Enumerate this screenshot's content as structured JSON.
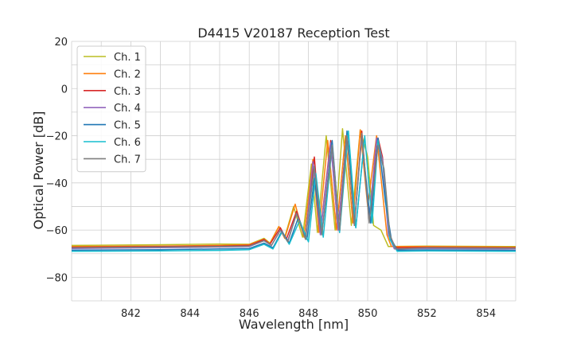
{
  "chart_data": {
    "type": "line",
    "title": "D4415 V20187 Reception Test",
    "xlabel": "Wavelength [nm]",
    "ylabel": "Optical Power [dB]",
    "xlim": [
      840,
      855
    ],
    "ylim": [
      -90,
      20
    ],
    "xticks": [
      842,
      844,
      846,
      848,
      850,
      852,
      854
    ],
    "yticks": [
      20,
      0,
      -20,
      -40,
      -60,
      -80
    ],
    "xtick_labels": [
      "842",
      "844",
      "846",
      "848",
      "850",
      "852",
      "854"
    ],
    "ytick_labels": [
      "20",
      "0",
      "−20",
      "−40",
      "−60",
      "−80"
    ],
    "grid": true,
    "legend_position": "top-left",
    "series": [
      {
        "name": "Ch. 1",
        "color": "#bcbd22",
        "points": [
          [
            840,
            -66.5
          ],
          [
            843,
            -66.2
          ],
          [
            845,
            -65.9
          ],
          [
            846,
            -66
          ],
          [
            846.5,
            -63.5
          ],
          [
            846.7,
            -65.5
          ],
          [
            847,
            -58.5
          ],
          [
            847.2,
            -63
          ],
          [
            847.5,
            -50
          ],
          [
            847.8,
            -63
          ],
          [
            848.1,
            -32
          ],
          [
            848.3,
            -61
          ],
          [
            848.6,
            -20
          ],
          [
            848.9,
            -60
          ],
          [
            849.15,
            -17
          ],
          [
            849.45,
            -58
          ],
          [
            849.75,
            -17.5
          ],
          [
            850,
            -29
          ],
          [
            850.2,
            -58
          ],
          [
            850.45,
            -60
          ],
          [
            850.7,
            -67
          ],
          [
            852,
            -66.8
          ],
          [
            855,
            -67
          ]
        ]
      },
      {
        "name": "Ch. 2",
        "color": "#ff7f0e",
        "points": [
          [
            840,
            -67
          ],
          [
            843,
            -66.8
          ],
          [
            845,
            -66.5
          ],
          [
            846,
            -66.2
          ],
          [
            846.5,
            -63.8
          ],
          [
            846.7,
            -65.8
          ],
          [
            847,
            -58.5
          ],
          [
            847.2,
            -63.5
          ],
          [
            847.55,
            -49
          ],
          [
            847.85,
            -63
          ],
          [
            848.15,
            -30
          ],
          [
            848.35,
            -61
          ],
          [
            848.65,
            -22
          ],
          [
            848.95,
            -60
          ],
          [
            849.25,
            -20
          ],
          [
            849.5,
            -57
          ],
          [
            849.75,
            -17.5
          ],
          [
            850.0,
            -50
          ],
          [
            850.3,
            -20
          ],
          [
            850.65,
            -62
          ],
          [
            850.8,
            -67
          ],
          [
            852,
            -67
          ],
          [
            855,
            -67.3
          ]
        ]
      },
      {
        "name": "Ch. 3",
        "color": "#d62728",
        "points": [
          [
            840,
            -67.3
          ],
          [
            843,
            -67
          ],
          [
            845,
            -66.8
          ],
          [
            846,
            -66.5
          ],
          [
            846.5,
            -64
          ],
          [
            846.7,
            -66
          ],
          [
            847.05,
            -59
          ],
          [
            847.25,
            -64
          ],
          [
            847.6,
            -52
          ],
          [
            847.9,
            -63
          ],
          [
            848.2,
            -29
          ],
          [
            848.4,
            -61
          ],
          [
            848.75,
            -22
          ],
          [
            849.0,
            -60
          ],
          [
            849.3,
            -19
          ],
          [
            849.55,
            -58
          ],
          [
            849.8,
            -18
          ],
          [
            850.05,
            -56
          ],
          [
            850.35,
            -21
          ],
          [
            850.5,
            -29
          ],
          [
            850.7,
            -60
          ],
          [
            850.9,
            -67.5
          ],
          [
            852,
            -67.3
          ],
          [
            855,
            -67.5
          ]
        ]
      },
      {
        "name": "Ch. 4",
        "color": "#9467bd",
        "points": [
          [
            840,
            -67.8
          ],
          [
            843,
            -67.5
          ],
          [
            845,
            -67.2
          ],
          [
            846,
            -67
          ],
          [
            846.5,
            -64.5
          ],
          [
            846.75,
            -66.5
          ],
          [
            847.05,
            -60
          ],
          [
            847.3,
            -64.5
          ],
          [
            847.6,
            -53
          ],
          [
            847.9,
            -63.5
          ],
          [
            848.15,
            -31
          ],
          [
            848.4,
            -62
          ],
          [
            848.75,
            -23
          ],
          [
            849.0,
            -60
          ],
          [
            849.3,
            -19
          ],
          [
            849.55,
            -58
          ],
          [
            849.8,
            -20
          ],
          [
            850.05,
            -56
          ],
          [
            850.3,
            -21
          ],
          [
            850.5,
            -30
          ],
          [
            850.7,
            -62
          ],
          [
            850.9,
            -68
          ],
          [
            852,
            -67.8
          ],
          [
            855,
            -68
          ]
        ]
      },
      {
        "name": "Ch. 5",
        "color": "#1f77b4",
        "points": [
          [
            840,
            -68.5
          ],
          [
            843,
            -68.3
          ],
          [
            845,
            -68
          ],
          [
            846,
            -67.8
          ],
          [
            846.5,
            -65.5
          ],
          [
            846.8,
            -67.5
          ],
          [
            847.1,
            -60.5
          ],
          [
            847.35,
            -65.5
          ],
          [
            847.65,
            -55
          ],
          [
            847.95,
            -64
          ],
          [
            848.2,
            -38
          ],
          [
            848.45,
            -62
          ],
          [
            848.8,
            -22
          ],
          [
            849.05,
            -61
          ],
          [
            849.3,
            -18
          ],
          [
            849.6,
            -59
          ],
          [
            849.85,
            -27
          ],
          [
            850.1,
            -57
          ],
          [
            850.35,
            -21
          ],
          [
            850.6,
            -48
          ],
          [
            850.8,
            -64
          ],
          [
            851.0,
            -68.5
          ],
          [
            852,
            -68.4
          ],
          [
            855,
            -68.6
          ]
        ]
      },
      {
        "name": "Ch. 6",
        "color": "#17becf",
        "points": [
          [
            840,
            -69
          ],
          [
            843,
            -68.8
          ],
          [
            845,
            -68.6
          ],
          [
            846,
            -68.3
          ],
          [
            846.5,
            -66
          ],
          [
            846.8,
            -68
          ],
          [
            847.1,
            -61
          ],
          [
            847.35,
            -66
          ],
          [
            847.7,
            -56
          ],
          [
            848.0,
            -65
          ],
          [
            848.25,
            -36
          ],
          [
            848.5,
            -63
          ],
          [
            848.8,
            -24
          ],
          [
            849.05,
            -61
          ],
          [
            849.35,
            -18
          ],
          [
            849.6,
            -59
          ],
          [
            849.9,
            -20
          ],
          [
            850.15,
            -57
          ],
          [
            850.35,
            -22
          ],
          [
            850.55,
            -35
          ],
          [
            850.75,
            -64
          ],
          [
            851.0,
            -69
          ],
          [
            852,
            -68.8
          ],
          [
            855,
            -69
          ]
        ]
      },
      {
        "name": "Ch. 7",
        "color": "#7f7f7f",
        "points": [
          [
            840,
            -67.5
          ],
          [
            843,
            -67.2
          ],
          [
            845,
            -67
          ],
          [
            846,
            -66.8
          ],
          [
            846.5,
            -64.5
          ],
          [
            846.75,
            -66.5
          ],
          [
            847.05,
            -60
          ],
          [
            847.3,
            -65
          ],
          [
            847.6,
            -53
          ],
          [
            847.9,
            -64
          ],
          [
            848.2,
            -33
          ],
          [
            848.45,
            -62
          ],
          [
            848.8,
            -24
          ],
          [
            849.05,
            -60
          ],
          [
            849.3,
            -20
          ],
          [
            849.55,
            -58
          ],
          [
            849.8,
            -19
          ],
          [
            850.05,
            -57
          ],
          [
            850.35,
            -24
          ],
          [
            850.55,
            -34
          ],
          [
            850.75,
            -62
          ],
          [
            850.95,
            -68
          ],
          [
            852,
            -67.5
          ],
          [
            855,
            -67.7
          ]
        ]
      }
    ]
  }
}
